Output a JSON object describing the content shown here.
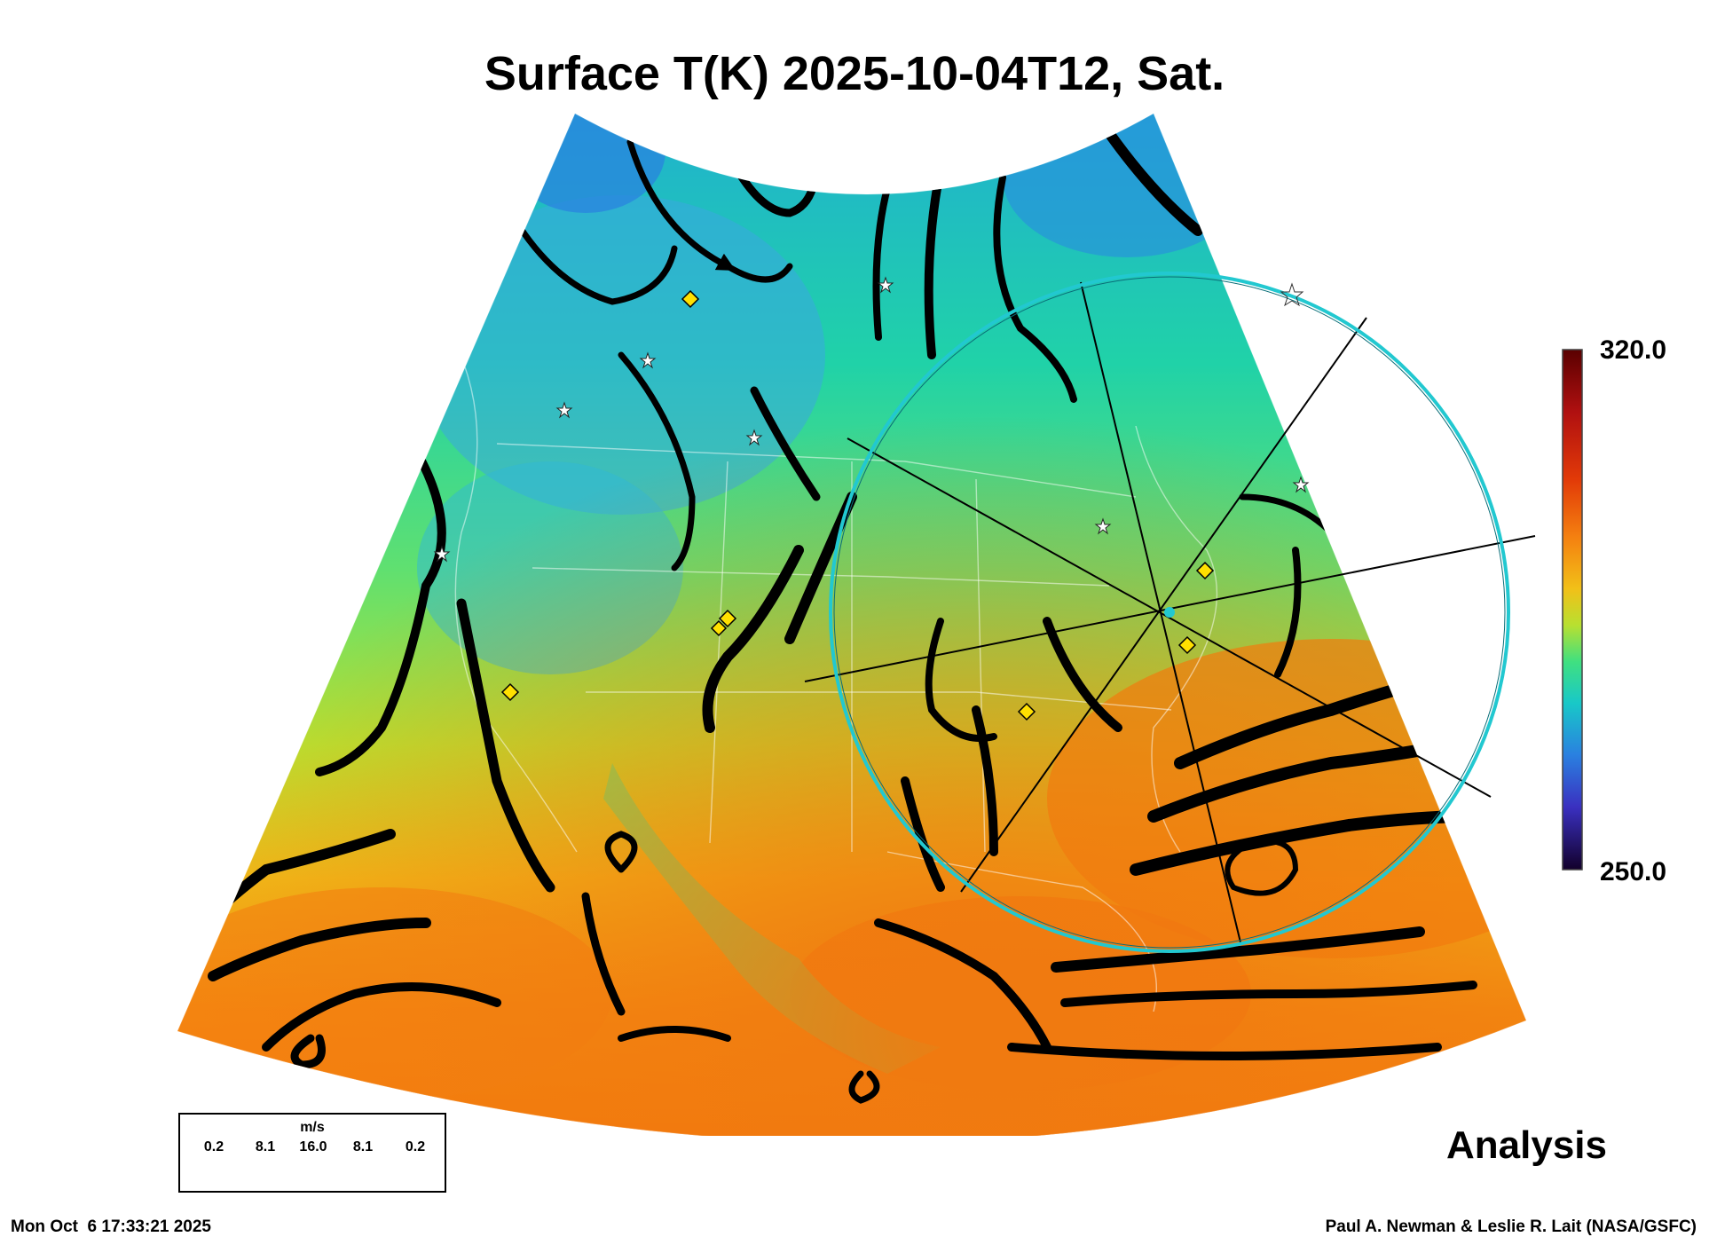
{
  "title": "Surface T(K) 2025-10-04T12, Sat.",
  "colorbar": {
    "max_label": "320.0",
    "min_label": "250.0",
    "colors": [
      "#6b0000",
      "#b01010",
      "#e03a0a",
      "#f47a0a",
      "#f6b010",
      "#e8d820",
      "#a8e82a",
      "#50e070",
      "#18d8b0",
      "#20a8e0",
      "#2a70e0",
      "#3a38c0",
      "#4a1088",
      "#10003a"
    ]
  },
  "legend": {
    "unit": "m/s",
    "values": [
      "0.2",
      "8.1",
      "16.0",
      "8.1",
      "0.2"
    ]
  },
  "analysis_label": "Analysis",
  "timestamp": "Mon Oct  6 17:33:21 2025",
  "credit": "Paul A. Newman & Leslie R. Lait (NASA/GSFC)",
  "markers": {
    "star_color": "#ffffff",
    "diamond_color": "#ffe000",
    "ring_color": "#22c8d0"
  }
}
